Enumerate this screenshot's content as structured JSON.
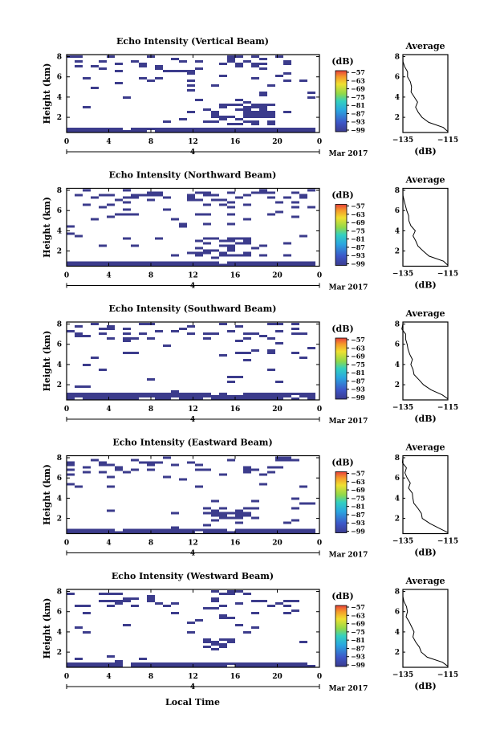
{
  "figure": {
    "x_axis_title": "Local Time",
    "date_label": "Mar 2017",
    "day_label": "4",
    "colorbar_unit": "(dB)",
    "average_xunit": "(dB)"
  },
  "chart_data": [
    {
      "type": "heatmap",
      "title": "Echo Intensity (Vertical Beam)",
      "ylabel": "Height (km)",
      "x_ticks": [
        "0",
        "4",
        "8",
        "12",
        "16",
        "20",
        "0"
      ],
      "y_ticks": [
        "2",
        "4",
        "6",
        "8"
      ],
      "xlim": [
        0,
        24
      ],
      "ylim": [
        0.5,
        8.2
      ],
      "colorbar": {
        "ticks": [
          "-57",
          "-63",
          "-69",
          "-75",
          "-81",
          "-87",
          "-93",
          "-99"
        ],
        "range": [
          -99,
          -57
        ]
      },
      "average": {
        "title": "Average",
        "xlim": [
          -135,
          -115
        ],
        "ylim": [
          0.5,
          8.2
        ],
        "x_ticks": [
          "-135",
          "-115"
        ],
        "y_ticks": [
          "2",
          "4",
          "6",
          "8"
        ],
        "profile": [
          [
            0.6,
            -115
          ],
          [
            1.0,
            -117
          ],
          [
            1.5,
            -123
          ],
          [
            2.0,
            -127
          ],
          [
            2.5,
            -128
          ],
          [
            3.0,
            -129
          ],
          [
            3.5,
            -129
          ],
          [
            4.0,
            -130
          ],
          [
            4.5,
            -131
          ],
          [
            5.0,
            -131
          ],
          [
            5.5,
            -132
          ],
          [
            6.0,
            -133
          ],
          [
            6.5,
            -133
          ],
          [
            7.0,
            -134
          ],
          [
            7.5,
            -135
          ],
          [
            8.0,
            -135
          ]
        ]
      },
      "layers": {
        "surface": 0.9,
        "band": [
          1.2,
          3.3,
          13.5,
          20
        ]
      }
    },
    {
      "type": "heatmap",
      "title": "Echo Intensity (Northward Beam)",
      "ylabel": "Height (km)",
      "x_ticks": [
        "0",
        "4",
        "8",
        "12",
        "16",
        "20",
        "0"
      ],
      "y_ticks": [
        "2",
        "4",
        "6",
        "8"
      ],
      "xlim": [
        0,
        24
      ],
      "ylim": [
        0.5,
        8.2
      ],
      "colorbar": {
        "ticks": [
          "-57",
          "-63",
          "-69",
          "-75",
          "-81",
          "-87",
          "-93",
          "-99"
        ],
        "range": [
          -99,
          -57
        ]
      },
      "average": {
        "title": "Average",
        "xlim": [
          -135,
          -115
        ],
        "ylim": [
          0.5,
          8.2
        ],
        "x_ticks": [
          "-135",
          "-115"
        ],
        "y_ticks": [
          "2",
          "4",
          "6",
          "8"
        ],
        "profile": [
          [
            0.6,
            -115
          ],
          [
            1.0,
            -117
          ],
          [
            1.5,
            -123
          ],
          [
            2.0,
            -126
          ],
          [
            2.5,
            -128
          ],
          [
            3.0,
            -129
          ],
          [
            3.5,
            -130
          ],
          [
            4.0,
            -130
          ],
          [
            4.5,
            -131
          ],
          [
            5.0,
            -132
          ],
          [
            5.5,
            -132
          ],
          [
            6.0,
            -133
          ],
          [
            6.5,
            -134
          ],
          [
            7.0,
            -134
          ],
          [
            7.5,
            -135
          ],
          [
            8.0,
            -135
          ]
        ]
      },
      "layers": {
        "surface": 0.9,
        "band": [
          1.5,
          3.3,
          12.5,
          18
        ]
      }
    },
    {
      "type": "heatmap",
      "title": "Echo Intensity (Southward Beam)",
      "ylabel": "Height (km)",
      "x_ticks": [
        "0",
        "4",
        "8",
        "12",
        "16",
        "20",
        "0"
      ],
      "y_ticks": [
        "2",
        "4",
        "6",
        "8"
      ],
      "xlim": [
        0,
        24
      ],
      "ylim": [
        0.5,
        8.2
      ],
      "colorbar": {
        "ticks": [
          "-57",
          "-63",
          "-69",
          "-75",
          "-81",
          "-87",
          "-93",
          "-99"
        ],
        "range": [
          -99,
          -57
        ]
      },
      "average": {
        "title": "Average",
        "xlim": [
          -135,
          -115
        ],
        "ylim": [
          0.5,
          8.2
        ],
        "x_ticks": [
          "-135",
          "-115"
        ],
        "y_ticks": [
          "2",
          "4",
          "6",
          "8"
        ],
        "profile": [
          [
            0.6,
            -115
          ],
          [
            1.0,
            -118
          ],
          [
            1.5,
            -123
          ],
          [
            2.0,
            -126
          ],
          [
            2.5,
            -128
          ],
          [
            3.0,
            -130
          ],
          [
            3.5,
            -130
          ],
          [
            4.0,
            -131
          ],
          [
            4.5,
            -131
          ],
          [
            5.0,
            -132
          ],
          [
            5.5,
            -133
          ],
          [
            6.0,
            -133
          ],
          [
            6.5,
            -134
          ],
          [
            7.0,
            -134
          ],
          [
            7.5,
            -135
          ],
          [
            8.0,
            -135
          ]
        ]
      },
      "layers": {
        "surface": 1.0,
        "band": [
          2.2,
          3.0,
          15.5,
          17
        ]
      }
    },
    {
      "type": "heatmap",
      "title": "Echo Intensity (Eastward Beam)",
      "ylabel": "Height (km)",
      "x_ticks": [
        "0",
        "4",
        "8",
        "12",
        "16",
        "20",
        "0"
      ],
      "y_ticks": [
        "2",
        "4",
        "6",
        "8"
      ],
      "xlim": [
        0,
        24
      ],
      "ylim": [
        0.5,
        8.2
      ],
      "colorbar": {
        "ticks": [
          "-57",
          "-63",
          "-69",
          "-75",
          "-81",
          "-87",
          "-93",
          "-99"
        ],
        "range": [
          -99,
          -57
        ]
      },
      "average": {
        "title": "Average",
        "xlim": [
          -135,
          -115
        ],
        "ylim": [
          0.5,
          8.2
        ],
        "x_ticks": [
          "-135",
          "-115"
        ],
        "y_ticks": [
          "2",
          "4",
          "6",
          "8"
        ],
        "profile": [
          [
            0.6,
            -115
          ],
          [
            1.0,
            -118
          ],
          [
            1.5,
            -123
          ],
          [
            2.0,
            -126
          ],
          [
            2.5,
            -127
          ],
          [
            3.0,
            -128
          ],
          [
            3.5,
            -130
          ],
          [
            4.0,
            -130
          ],
          [
            4.5,
            -131
          ],
          [
            5.0,
            -132
          ],
          [
            5.5,
            -132
          ],
          [
            6.0,
            -133
          ],
          [
            6.5,
            -134
          ],
          [
            7.0,
            -134
          ],
          [
            7.5,
            -135
          ],
          [
            8.0,
            -135
          ]
        ]
      },
      "layers": {
        "surface": 0.9,
        "band": [
          1.8,
          3.2,
          13,
          18.5
        ]
      }
    },
    {
      "type": "heatmap",
      "title": "Echo Intensity (Westward Beam)",
      "ylabel": "Height (km)",
      "x_ticks": [
        "0",
        "4",
        "8",
        "12",
        "16",
        "20",
        "0"
      ],
      "y_ticks": [
        "2",
        "4",
        "6",
        "8"
      ],
      "xlim": [
        0,
        24
      ],
      "ylim": [
        0.5,
        8.2
      ],
      "colorbar": {
        "ticks": [
          "-57",
          "-63",
          "-69",
          "-75",
          "-81",
          "-87",
          "-93",
          "-99"
        ],
        "range": [
          -99,
          -57
        ]
      },
      "average": {
        "title": "Average",
        "xlim": [
          -135,
          -115
        ],
        "ylim": [
          0.5,
          8.2
        ],
        "x_ticks": [
          "-135",
          "-115"
        ],
        "y_ticks": [
          "2",
          "4",
          "6",
          "8"
        ],
        "profile": [
          [
            0.6,
            -115
          ],
          [
            1.0,
            -117
          ],
          [
            1.5,
            -124
          ],
          [
            2.0,
            -127
          ],
          [
            2.5,
            -128
          ],
          [
            3.0,
            -129
          ],
          [
            3.5,
            -130
          ],
          [
            4.0,
            -130
          ],
          [
            4.5,
            -131
          ],
          [
            5.0,
            -132
          ],
          [
            5.5,
            -133
          ],
          [
            6.0,
            -133
          ],
          [
            6.5,
            -134
          ],
          [
            7.0,
            -135
          ],
          [
            7.5,
            -135
          ],
          [
            8.0,
            -135
          ]
        ]
      },
      "layers": {
        "surface": 0.9,
        "band": [
          2.2,
          3.3,
          13.5,
          16.5
        ]
      }
    }
  ]
}
